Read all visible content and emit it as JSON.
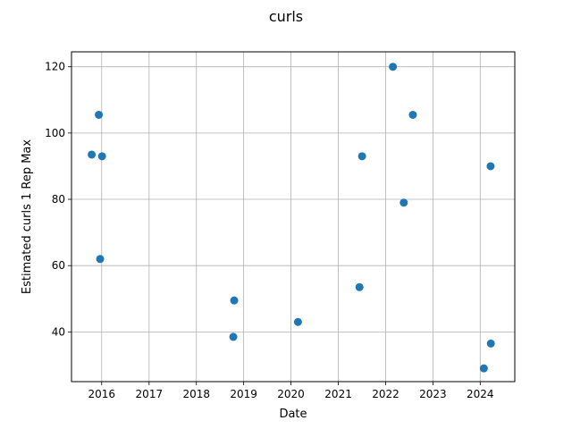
{
  "chart_data": {
    "type": "scatter",
    "title": "curls",
    "xlabel": "Date",
    "ylabel": "Estimated curls 1 Rep Max",
    "xlim": [
      "2015-05-13",
      "2024-09-24"
    ],
    "ylim": [
      25,
      124.5
    ],
    "x_ticks": [
      "2016",
      "2017",
      "2018",
      "2019",
      "2020",
      "2021",
      "2022",
      "2023",
      "2024"
    ],
    "y_ticks": [
      40,
      60,
      80,
      100,
      120
    ],
    "grid": true,
    "marker_color": "#1f77b4",
    "points": [
      {
        "x": "2015-10-16",
        "y": 93.5
      },
      {
        "x": "2015-12-10",
        "y": 105.5
      },
      {
        "x": "2015-12-20",
        "y": 62
      },
      {
        "x": "2016-01-04",
        "y": 93
      },
      {
        "x": "2018-10-13",
        "y": 38.5
      },
      {
        "x": "2018-10-20",
        "y": 49.5
      },
      {
        "x": "2020-02-24",
        "y": 43
      },
      {
        "x": "2021-06-13",
        "y": 53.5
      },
      {
        "x": "2021-07-03",
        "y": 93
      },
      {
        "x": "2022-02-26",
        "y": 120
      },
      {
        "x": "2022-05-21",
        "y": 79
      },
      {
        "x": "2022-07-30",
        "y": 105.5
      },
      {
        "x": "2024-01-29",
        "y": 29
      },
      {
        "x": "2024-03-21",
        "y": 90
      },
      {
        "x": "2024-03-23",
        "y": 36.5
      }
    ]
  }
}
